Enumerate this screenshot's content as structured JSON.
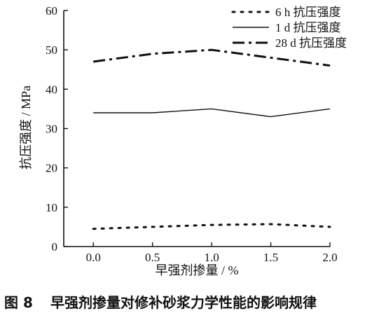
{
  "caption": {
    "number": "图 8",
    "text": "早强剂掺量对修补砂浆力学性能的影响规律"
  },
  "chart_data": {
    "type": "line",
    "title": "",
    "xlabel": "早强剂掺量 / %",
    "ylabel": "抗压强度 / MPa",
    "xlim": [
      -0.25,
      2.0
    ],
    "ylim": [
      0,
      60
    ],
    "xticks": [
      0.0,
      0.5,
      1.0,
      1.5,
      2.0
    ],
    "xtick_labels": [
      "0.0",
      "0.5",
      "1.0",
      "1.5",
      "2.0"
    ],
    "yticks": [
      0,
      10,
      20,
      30,
      40,
      50,
      60
    ],
    "ytick_labels": [
      "0",
      "10",
      "20",
      "30",
      "40",
      "50",
      "60"
    ],
    "grid": false,
    "legend_position": "top-right",
    "x": [
      0.0,
      0.5,
      1.0,
      1.5,
      2.0
    ],
    "series": [
      {
        "name": "6 h 抗压强度",
        "values": [
          4.5,
          5.0,
          5.5,
          5.7,
          5.0
        ],
        "style": "dotted",
        "color": "#111111"
      },
      {
        "name": "1 d 抗压强度",
        "values": [
          34.0,
          34.0,
          35.0,
          33.0,
          35.0
        ],
        "style": "solid",
        "color": "#111111"
      },
      {
        "name": "28 d 抗压强度",
        "values": [
          47.0,
          49.0,
          50.0,
          48.0,
          46.0
        ],
        "style": "dashdot",
        "color": "#111111"
      }
    ]
  }
}
